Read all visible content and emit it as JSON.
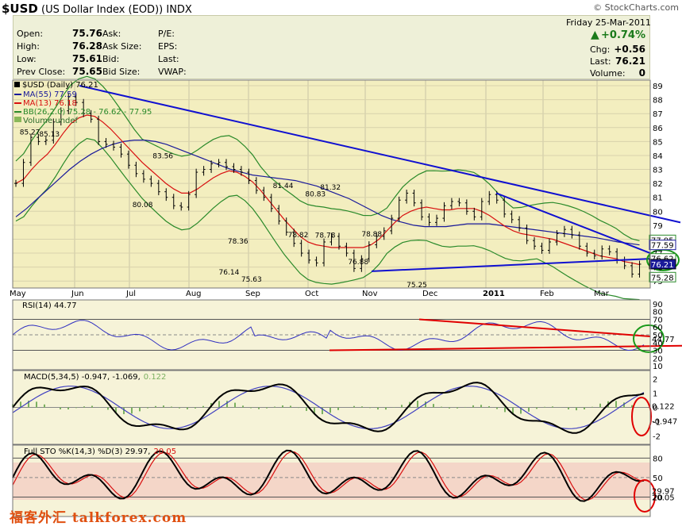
{
  "header": {
    "symbol": "$USD",
    "title": "(US Dollar Index (EOD))",
    "exchange": "INDX",
    "brand": "© StockCharts.com",
    "date": "Friday  25-Mar-2011",
    "change_pct": "+0.74%"
  },
  "quote": {
    "open_label": "Open:",
    "open": "75.76",
    "high_label": "High:",
    "high": "76.28",
    "low_label": "Low:",
    "low": "75.61",
    "prev_label": "Prev Close:",
    "prev": "75.65",
    "ask_label": "Ask:",
    "ask_size_label": "Ask Size:",
    "bid_label": "Bid:",
    "bid_size_label": "Bid Size:",
    "pe_label": "P/E:",
    "eps_label": "EPS:",
    "last_label": "Last:",
    "vwap_label": "VWAP:",
    "chg_label": "Chg:",
    "chg": "+0.56",
    "last2_label": "Last:",
    "last2": "76.21",
    "volume_label": "Volume:",
    "volume": "0"
  },
  "legends": {
    "price": "$USD (Daily) 76.21",
    "ma55": "MA(55) 77.59",
    "ma13": "MA(13) 76.18",
    "bb": "BB(26,2.0) 75.28 - 76.62 - 77.95",
    "vol": "Volume undef",
    "rsi": "RSI(14) 44.77",
    "macd_a": "MACD(5,34,5) -0.947, -1.069,",
    "macd_b": "0.122",
    "sto_a": "Full STO %K(14,3) %D(3) 29.97,",
    "sto_b": "20.05"
  },
  "watermark": "福客外汇 talkforex.com",
  "colors": {
    "price_bg": "#f3eebf",
    "price": "#000000",
    "ma55": "#1a1a9a",
    "ma13": "#d81010",
    "bb": "#2a8a2a",
    "trend": "#1010d0",
    "rsi": "#3030c0",
    "red_line": "#e00000"
  },
  "chart_data": [
    {
      "type": "line",
      "title": "$USD (Daily) 76.21",
      "x_ticks": [
        "May",
        "Jun",
        "Jul",
        "Aug",
        "Sep",
        "Oct",
        "Nov",
        "Dec",
        "2011",
        "Feb",
        "Mar"
      ],
      "y_ticks": [
        75,
        76,
        77,
        78,
        79,
        80,
        81,
        82,
        83,
        84,
        85,
        86,
        87,
        88,
        89
      ],
      "ylim": [
        74.5,
        89.4
      ],
      "annotations": [
        {
          "label": "85.27",
          "x": 0.5,
          "y": 85.27
        },
        {
          "label": "85.13",
          "x": 3.1,
          "y": 85.13
        },
        {
          "label": "83.56",
          "x": 18.2,
          "y": 83.56
        },
        {
          "label": "80.08",
          "x": 15.5,
          "y": 80.08
        },
        {
          "label": "78.36",
          "x": 28.2,
          "y": 78.36
        },
        {
          "label": "76.14",
          "x": 27.0,
          "y": 76.14
        },
        {
          "label": "75.63",
          "x": 30.0,
          "y": 75.63
        },
        {
          "label": "81.44",
          "x": 34.2,
          "y": 81.44
        },
        {
          "label": "78.82",
          "x": 36.2,
          "y": 78.82
        },
        {
          "label": "80.83",
          "x": 38.5,
          "y": 80.83
        },
        {
          "label": "81.32",
          "x": 40.5,
          "y": 81.32
        },
        {
          "label": "78.78",
          "x": 39.8,
          "y": 78.78
        },
        {
          "label": "78.88",
          "x": 46.0,
          "y": 78.88
        },
        {
          "label": "76.88",
          "x": 44.2,
          "y": 76.88
        },
        {
          "label": "75.25",
          "x": 52.0,
          "y": 75.25
        }
      ],
      "right_labels": [
        "77.95",
        "77.59",
        "76.62",
        "76.21",
        "75.28"
      ],
      "series": [
        {
          "name": "$USD (Daily)",
          "values": [
            82.0,
            83.5,
            85.3,
            85.0,
            85.1,
            86.4,
            87.2,
            88.2,
            87.8,
            87.0,
            86.6,
            85.0,
            84.8,
            84.6,
            84.1,
            83.3,
            82.7,
            82.3,
            82.0,
            81.4,
            81.0,
            80.4,
            80.3,
            81.2,
            82.8,
            83.0,
            83.4,
            83.5,
            83.2,
            83.0,
            82.8,
            82.2,
            81.5,
            81.0,
            80.2,
            79.3,
            78.5,
            77.7,
            77.0,
            76.5,
            76.3,
            77.8,
            78.2,
            77.5,
            77.0,
            75.9,
            76.6,
            77.6,
            78.2,
            78.6,
            79.5,
            80.8,
            81.3,
            80.6,
            79.6,
            79.2,
            79.5,
            80.4,
            80.7,
            80.6,
            80.0,
            79.6,
            80.7,
            81.2,
            80.8,
            79.8,
            79.4,
            78.8,
            77.9,
            77.5,
            77.2,
            77.8,
            78.4,
            78.7,
            78.3,
            77.5,
            77.0,
            76.8,
            77.3,
            77.1,
            76.5,
            76.1,
            75.5,
            76.21
          ]
        },
        {
          "name": "MA(13)",
          "values": [
            82.0,
            82.3,
            83.0,
            83.6,
            84.1,
            84.8,
            85.6,
            86.3,
            86.7,
            86.9,
            86.8,
            86.4,
            85.9,
            85.3,
            84.7,
            84.1,
            83.5,
            83.0,
            82.5,
            82.0,
            81.6,
            81.3,
            81.3,
            81.6,
            82.0,
            82.4,
            82.7,
            82.9,
            82.8,
            82.5,
            82.1,
            81.5,
            80.8,
            80.1,
            79.4,
            78.8,
            78.2,
            77.8,
            77.6,
            77.5,
            77.4,
            77.4,
            77.4,
            77.4,
            77.4,
            77.6,
            78.0,
            78.6,
            79.2,
            79.7,
            80.0,
            80.2,
            80.3,
            80.2,
            80.1,
            80.1,
            80.2,
            80.2,
            80.2,
            80.0,
            79.7,
            79.3,
            78.9,
            78.6,
            78.4,
            78.3,
            78.2,
            78.1,
            78.0,
            77.8,
            77.6,
            77.4,
            77.2,
            77.0,
            76.8,
            76.7,
            76.6,
            76.4,
            76.3,
            76.18
          ]
        },
        {
          "name": "MA(55)",
          "values": [
            79.6,
            80.2,
            80.9,
            81.6,
            82.3,
            83.0,
            83.6,
            84.1,
            84.5,
            84.8,
            85.0,
            85.1,
            85.1,
            85.0,
            84.8,
            84.5,
            84.2,
            83.9,
            83.6,
            83.3,
            83.0,
            82.8,
            82.6,
            82.5,
            82.4,
            82.3,
            82.2,
            82.0,
            81.8,
            81.5,
            81.2,
            80.9,
            80.5,
            80.1,
            79.7,
            79.4,
            79.2,
            79.0,
            78.9,
            78.9,
            78.9,
            79.0,
            79.1,
            79.1,
            79.1,
            79.0,
            78.9,
            78.8,
            78.7,
            78.6,
            78.5,
            78.4,
            78.3,
            78.2,
            78.1,
            77.95,
            77.8,
            77.7,
            77.59
          ]
        }
      ]
    },
    {
      "type": "line",
      "title": "RSI(14) 44.77",
      "y_ticks": [
        10,
        20,
        30,
        40,
        50,
        60,
        70,
        80,
        90
      ],
      "ylim": [
        5,
        95
      ],
      "last": 44.77
    },
    {
      "type": "line",
      "title": "MACD(5,34,5) -0.947, -1.069, 0.122",
      "y_ticks": [
        -2,
        -1,
        0,
        1,
        2
      ],
      "series": [
        {
          "name": "MACD",
          "last": -0.947
        },
        {
          "name": "Signal",
          "last": -1.069
        },
        {
          "name": "Histogram",
          "last": 0.122
        }
      ]
    },
    {
      "type": "line",
      "title": "Full STO %K(14,3) %D(3) 29.97, 20.05",
      "y_ticks": [
        20,
        50,
        80
      ],
      "series": [
        {
          "name": "%K",
          "last": 29.97
        },
        {
          "name": "%D",
          "last": 20.05
        }
      ]
    }
  ]
}
